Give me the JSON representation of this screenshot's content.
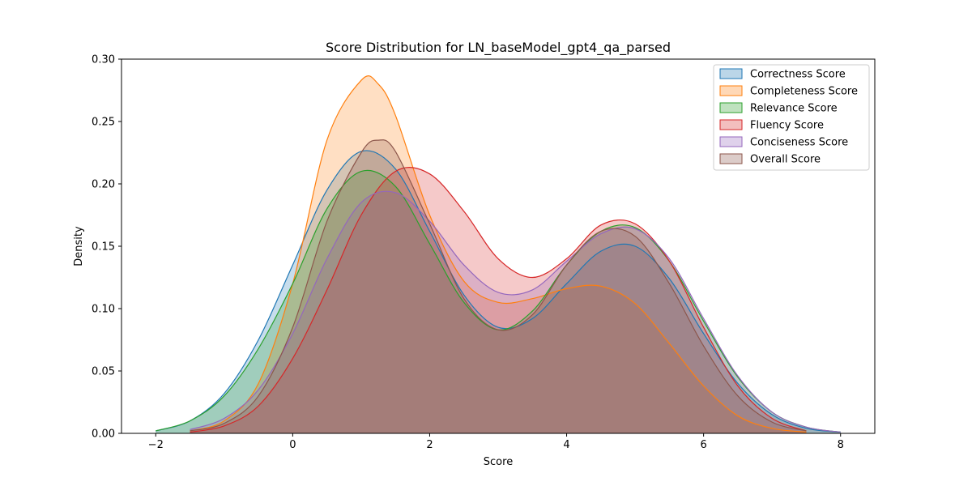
{
  "chart_data": {
    "type": "area",
    "title": "Score Distribution for LN_baseModel_gpt4_qa_parsed",
    "xlabel": "Score",
    "ylabel": "Density",
    "xlim": [
      -2.5,
      8.5
    ],
    "ylim": [
      0,
      0.3
    ],
    "xticks": [
      "−2",
      "0",
      "2",
      "4",
      "6",
      "8"
    ],
    "xtick_values": [
      -2,
      0,
      2,
      4,
      6,
      8
    ],
    "yticks": [
      "0.00",
      "0.05",
      "0.10",
      "0.15",
      "0.20",
      "0.25",
      "0.30"
    ],
    "ytick_values": [
      0,
      0.05,
      0.1,
      0.15,
      0.2,
      0.25,
      0.3
    ],
    "legend_position": "top-right",
    "grid": false,
    "series": [
      {
        "name": "Correctness Score",
        "color": "#1f77b4",
        "x": [
          -2,
          -1.5,
          -1,
          -0.5,
          0,
          0.5,
          1,
          1.5,
          2,
          2.5,
          3,
          3.5,
          4,
          4.5,
          5,
          5.5,
          6,
          6.5,
          7,
          7.5,
          8
        ],
        "y": [
          0.002,
          0.01,
          0.032,
          0.075,
          0.135,
          0.195,
          0.226,
          0.212,
          0.162,
          0.111,
          0.085,
          0.092,
          0.12,
          0.146,
          0.15,
          0.124,
          0.08,
          0.04,
          0.015,
          0.004,
          0.001
        ]
      },
      {
        "name": "Completeness Score",
        "color": "#ff7f0e",
        "x": [
          -1.5,
          -1,
          -0.5,
          0,
          0.5,
          1,
          1.25,
          1.5,
          2,
          2.5,
          3,
          3.5,
          4,
          4.5,
          5,
          5.5,
          6,
          6.5,
          7,
          7.5
        ],
        "y": [
          0.002,
          0.01,
          0.04,
          0.12,
          0.235,
          0.283,
          0.28,
          0.255,
          0.175,
          0.122,
          0.105,
          0.108,
          0.116,
          0.118,
          0.104,
          0.072,
          0.038,
          0.014,
          0.004,
          0.001
        ]
      },
      {
        "name": "Relevance Score",
        "color": "#2ca02c",
        "x": [
          -2,
          -1.5,
          -1,
          -0.5,
          0,
          0.5,
          1,
          1.5,
          2,
          2.5,
          3,
          3.5,
          4,
          4.5,
          5,
          5.5,
          6,
          6.5,
          7,
          7.5,
          8
        ],
        "y": [
          0.002,
          0.01,
          0.03,
          0.068,
          0.12,
          0.18,
          0.21,
          0.198,
          0.152,
          0.105,
          0.083,
          0.098,
          0.135,
          0.162,
          0.165,
          0.138,
          0.09,
          0.045,
          0.017,
          0.005,
          0.001
        ]
      },
      {
        "name": "Fluency Score",
        "color": "#d62728",
        "x": [
          -1.5,
          -1,
          -0.5,
          0,
          0.5,
          1,
          1.5,
          2,
          2.5,
          3,
          3.5,
          4,
          4.5,
          5,
          5.5,
          6,
          6.5,
          7,
          7.5
        ],
        "y": [
          0.001,
          0.006,
          0.022,
          0.06,
          0.115,
          0.175,
          0.21,
          0.208,
          0.178,
          0.14,
          0.125,
          0.14,
          0.167,
          0.168,
          0.138,
          0.085,
          0.038,
          0.012,
          0.002
        ]
      },
      {
        "name": "Conciseness Score",
        "color": "#9467bd",
        "x": [
          -1.5,
          -1,
          -0.5,
          0,
          0.5,
          1,
          1.5,
          2,
          2.5,
          3,
          3.5,
          4,
          4.5,
          5,
          5.5,
          6,
          6.5,
          7,
          7.5,
          8
        ],
        "y": [
          0.003,
          0.012,
          0.035,
          0.08,
          0.14,
          0.185,
          0.193,
          0.17,
          0.135,
          0.113,
          0.115,
          0.138,
          0.16,
          0.164,
          0.14,
          0.092,
          0.046,
          0.017,
          0.005,
          0.001
        ]
      },
      {
        "name": "Overall Score",
        "color": "#8c564b",
        "x": [
          -1.5,
          -1,
          -0.5,
          0,
          0.5,
          1,
          1.25,
          1.5,
          2,
          2.5,
          3,
          3.5,
          4,
          4.5,
          5,
          5.5,
          6,
          6.5,
          7,
          7.5
        ],
        "y": [
          0.002,
          0.008,
          0.03,
          0.085,
          0.17,
          0.225,
          0.235,
          0.226,
          0.168,
          0.108,
          0.083,
          0.095,
          0.135,
          0.162,
          0.158,
          0.12,
          0.07,
          0.03,
          0.009,
          0.002
        ]
      }
    ]
  }
}
